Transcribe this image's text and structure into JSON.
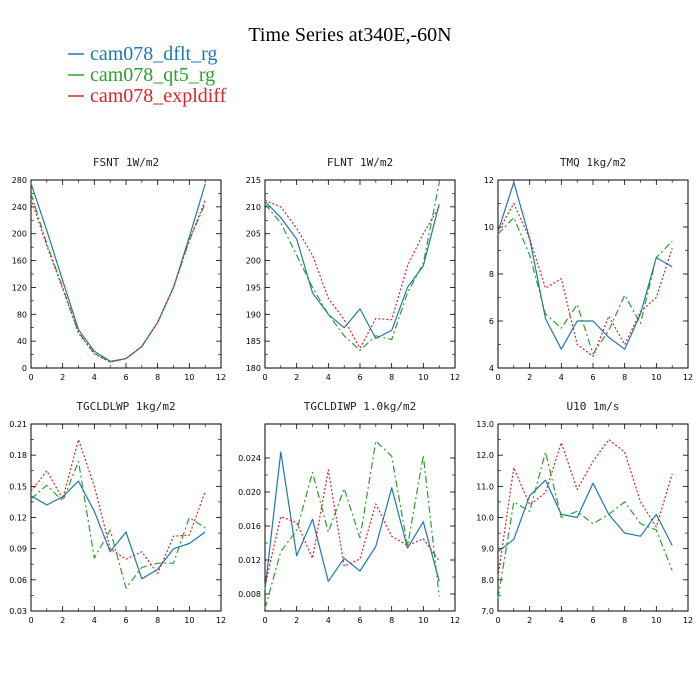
{
  "title": "Time Series at340E,-60N",
  "legend": [
    {
      "name": "cam078_dflt_rg",
      "color": "#1f77b4"
    },
    {
      "name": "cam078_qt5_rg",
      "color": "#2ca02c"
    },
    {
      "name": "cam078_expldiff",
      "color": "#d62728"
    }
  ],
  "chart_data": [
    {
      "type": "line",
      "title": "FSNT   1W/m2",
      "x": [
        0,
        1,
        2,
        3,
        4,
        5,
        6,
        7,
        8,
        9,
        10,
        11
      ],
      "xlim": [
        0,
        12
      ],
      "xticks": [
        "0",
        "2",
        "4",
        "6",
        "8",
        "10",
        "12"
      ],
      "ylim": [
        0,
        280
      ],
      "yticks": [
        "0",
        "40",
        "80",
        "120",
        "160",
        "200",
        "240",
        "280"
      ],
      "series": [
        {
          "values": [
            275,
            205,
            130,
            57,
            25,
            10,
            14,
            32,
            68,
            120,
            195,
            274
          ]
        },
        {
          "values": [
            260,
            185,
            120,
            53,
            22,
            9,
            14,
            32,
            68,
            120,
            190,
            245
          ]
        },
        {
          "values": [
            252,
            182,
            118,
            52,
            21,
            9,
            14,
            32,
            68,
            120,
            190,
            250
          ]
        }
      ]
    },
    {
      "type": "line",
      "title": "FLNT   1W/m2",
      "x": [
        0,
        1,
        2,
        3,
        4,
        5,
        6,
        7,
        8,
        9,
        10,
        11
      ],
      "xlim": [
        0,
        12
      ],
      "xticks": [
        "0",
        "2",
        "4",
        "6",
        "8",
        "10",
        "12"
      ],
      "ylim": [
        180,
        215
      ],
      "yticks": [
        "180",
        "185",
        "190",
        "195",
        "200",
        "205",
        "210",
        "215"
      ],
      "series": [
        {
          "values": [
            211,
            208,
            204,
            194,
            190,
            187.5,
            191,
            185.5,
            187,
            195,
            199,
            210.5
          ]
        },
        {
          "values": [
            210.5,
            207,
            201,
            195,
            190,
            186,
            183.3,
            186,
            185.3,
            194,
            199.5,
            214.5
          ]
        },
        {
          "values": [
            211.2,
            210,
            206,
            201,
            193,
            189,
            183.7,
            189.2,
            189,
            199,
            205,
            210
          ]
        }
      ]
    },
    {
      "type": "line",
      "title": "TMQ   1kg/m2",
      "x": [
        0,
        1,
        2,
        3,
        4,
        5,
        6,
        7,
        8,
        9,
        10,
        11
      ],
      "xlim": [
        0,
        12
      ],
      "xticks": [
        "0",
        "2",
        "4",
        "6",
        "8",
        "10",
        "12"
      ],
      "ylim": [
        4,
        12
      ],
      "yticks": [
        "4",
        "6",
        "8",
        "10",
        "12"
      ],
      "series": [
        {
          "values": [
            9.8,
            11.9,
            9.5,
            6.1,
            4.8,
            6,
            6,
            5.3,
            4.8,
            6.3,
            8.7,
            8.3
          ]
        },
        {
          "values": [
            9.7,
            10.4,
            8.8,
            6.3,
            5.7,
            6.7,
            4.6,
            5.6,
            7.1,
            5.9,
            8.7,
            9.4
          ]
        },
        {
          "values": [
            9.8,
            11,
            9.5,
            7.4,
            7.8,
            5,
            4.5,
            6.2,
            5,
            6.4,
            7,
            9.1
          ]
        }
      ]
    },
    {
      "type": "line",
      "title": "TGCLDLWP   1kg/m2",
      "x": [
        0,
        1,
        2,
        3,
        4,
        5,
        6,
        7,
        8,
        9,
        10,
        11
      ],
      "xlim": [
        0,
        12
      ],
      "xticks": [
        "0",
        "2",
        "4",
        "6",
        "8",
        "10",
        "12"
      ],
      "ylim": [
        0.03,
        0.21
      ],
      "yticks": [
        "0.03",
        "0.06",
        "0.09",
        "0.12",
        "0.15",
        "0.18",
        "0.21"
      ],
      "series": [
        {
          "values": [
            0.141,
            0.132,
            0.14,
            0.155,
            0.126,
            0.087,
            0.106,
            0.061,
            0.07,
            0.09,
            0.095,
            0.106
          ]
        },
        {
          "values": [
            0.138,
            0.151,
            0.136,
            0.174,
            0.081,
            0.108,
            0.052,
            0.072,
            0.076,
            0.076,
            0.12,
            0.11
          ]
        },
        {
          "values": [
            0.145,
            0.165,
            0.138,
            0.195,
            0.15,
            0.09,
            0.08,
            0.087,
            0.066,
            0.102,
            0.103,
            0.145
          ]
        }
      ]
    },
    {
      "type": "line",
      "title": "TGCLDIWP   1.0kg/m2",
      "x": [
        0,
        1,
        2,
        3,
        4,
        5,
        6,
        7,
        8,
        9,
        10,
        11
      ],
      "xlim": [
        0,
        12
      ],
      "xticks": [
        "0",
        "2",
        "4",
        "6",
        "8",
        "10",
        "12"
      ],
      "ylim": [
        0.006,
        0.028
      ],
      "yticks": [
        "0.008",
        "0.012",
        "0.016",
        "0.020",
        "0.024"
      ],
      "series": [
        {
          "values": [
            0.0085,
            0.0247,
            0.0125,
            0.0168,
            0.0095,
            0.0122,
            0.0107,
            0.0136,
            0.0205,
            0.0134,
            0.0165,
            0.0095
          ]
        },
        {
          "values": [
            0.0063,
            0.013,
            0.0155,
            0.0223,
            0.0153,
            0.0204,
            0.0146,
            0.026,
            0.0242,
            0.0136,
            0.0243,
            0.0077
          ]
        },
        {
          "values": [
            0.009,
            0.0171,
            0.0164,
            0.0122,
            0.0226,
            0.0113,
            0.0121,
            0.0186,
            0.0148,
            0.0137,
            0.0145,
            0.0119
          ]
        }
      ]
    },
    {
      "type": "line",
      "title": "U10   1m/s",
      "x": [
        0,
        1,
        2,
        3,
        4,
        5,
        6,
        7,
        8,
        9,
        10,
        11
      ],
      "xlim": [
        0,
        12
      ],
      "xticks": [
        "0",
        "2",
        "4",
        "6",
        "8",
        "10",
        "12"
      ],
      "ylim": [
        7,
        13
      ],
      "yticks": [
        "7.0",
        "8.0",
        "9.0",
        "10.0",
        "11.0",
        "12.0",
        "13.0"
      ],
      "series": [
        {
          "values": [
            8.9,
            9.3,
            10.7,
            11.2,
            10.1,
            10,
            11.1,
            10.1,
            9.5,
            9.4,
            10.1,
            9.1
          ]
        },
        {
          "values": [
            7.4,
            10.5,
            10.2,
            12.1,
            10,
            10.2,
            9.8,
            10.1,
            10.5,
            9.8,
            9.6,
            8.3
          ]
        },
        {
          "values": [
            8.1,
            11.6,
            10.4,
            10.8,
            12.4,
            10.9,
            11.8,
            12.5,
            12.1,
            10.5,
            9.7,
            11.4
          ]
        }
      ]
    }
  ]
}
